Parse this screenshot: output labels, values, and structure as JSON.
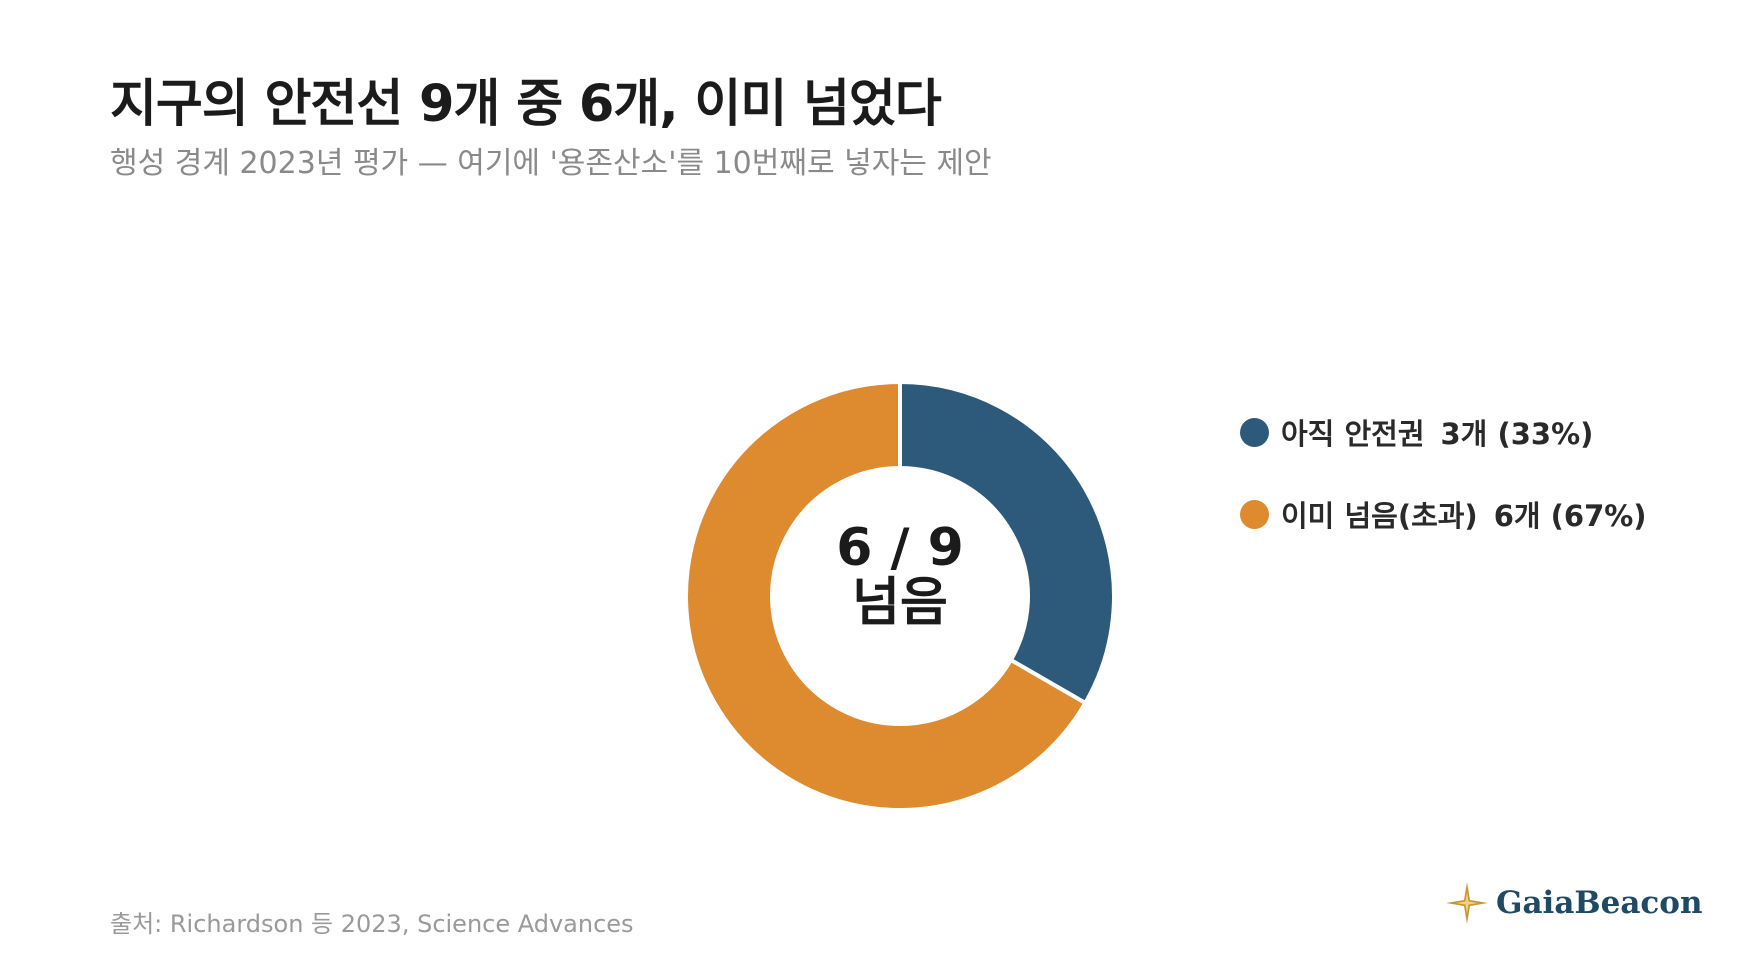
{
  "header": {
    "title": "지구의 안전선 9개 중 6개, 이미 넘었다",
    "subtitle": "행성 경계 2023년 평가 — 여기에 '용존산소'를 10번째로 넣자는 제안"
  },
  "chart_data": {
    "type": "pie",
    "donut": true,
    "slices": [
      {
        "label": "아직 안전권",
        "value": 3,
        "display": "3개 (33%)",
        "color": "#2d5a7b"
      },
      {
        "label": "이미 넘음(초과)",
        "value": 6,
        "display": "6개 (67%)",
        "color": "#de8a2e"
      }
    ],
    "center_label": {
      "line1": "6 / 9",
      "line2": "넘음"
    },
    "legend_position": "right"
  },
  "footer": {
    "source": "출처: Richardson 등 2023, Science Advances",
    "brand": "GaiaBeacon",
    "brand_icon": "compass-star-icon",
    "brand_color": "#1f4a63",
    "brand_icon_color": "#c8962e"
  }
}
